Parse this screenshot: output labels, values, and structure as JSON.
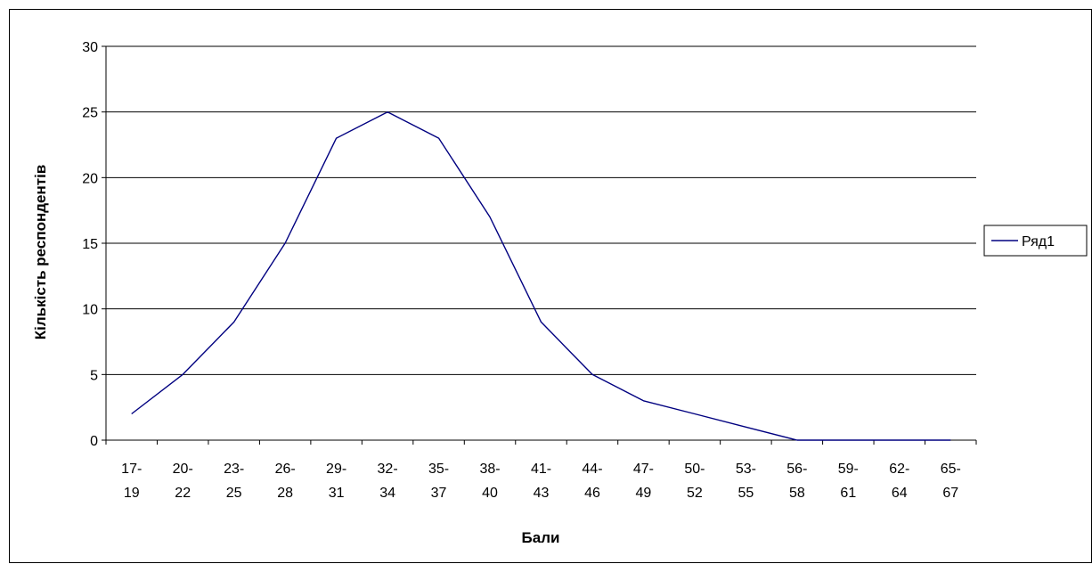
{
  "chart_data": {
    "type": "line",
    "title": "",
    "xlabel": "Бали",
    "ylabel": "Кількість респондентів",
    "categories": [
      [
        "17-",
        "19"
      ],
      [
        "20-",
        "22"
      ],
      [
        "23-",
        "25"
      ],
      [
        "26-",
        "28"
      ],
      [
        "29-",
        "31"
      ],
      [
        "32-",
        "34"
      ],
      [
        "35-",
        "37"
      ],
      [
        "38-",
        "40"
      ],
      [
        "41-",
        "43"
      ],
      [
        "44-",
        "46"
      ],
      [
        "47-",
        "49"
      ],
      [
        "50-",
        "52"
      ],
      [
        "53-",
        "55"
      ],
      [
        "56-",
        "58"
      ],
      [
        "59-",
        "61"
      ],
      [
        "62-",
        "64"
      ],
      [
        "65-",
        "67"
      ]
    ],
    "series": [
      {
        "name": "Ряд1",
        "color": "#000080",
        "values": [
          2,
          5,
          9,
          15,
          23,
          25,
          23,
          17,
          9,
          5,
          3,
          2,
          1,
          0,
          0,
          0,
          0
        ]
      }
    ],
    "ylim": [
      0,
      30
    ],
    "yticks": [
      0,
      5,
      10,
      15,
      20,
      25,
      30
    ],
    "grid": true,
    "legend_position": "right"
  }
}
